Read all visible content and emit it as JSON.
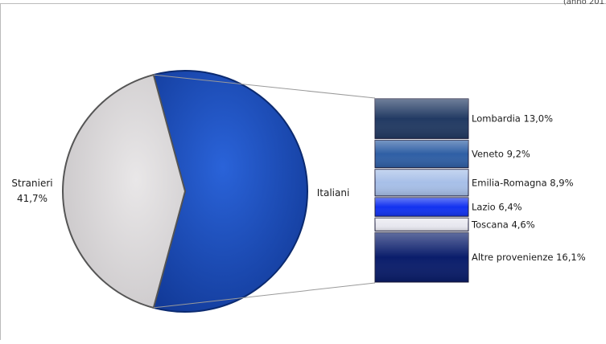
{
  "header": {
    "corner_text": "(anno 201"
  },
  "colors": {
    "italiani": "#1f4fba",
    "stranieri": "#d9d7d8",
    "lombardia": "#223a63",
    "veneto": "#2f5fa5",
    "emilia_romagna": "#a7bfe8",
    "lazio": "#1232f0",
    "toscana": "#e8e8f0",
    "altre": "#0a1d6b"
  },
  "chart_data": {
    "type": "pie",
    "pie": {
      "slices": [
        {
          "label": "Italiani",
          "value_text": "",
          "value": 58.3
        },
        {
          "label": "Stranieri",
          "value_text": "41,7%",
          "value": 41.7
        }
      ]
    },
    "bar": {
      "type": "bar",
      "stacked": true,
      "segments": [
        {
          "label": "Lombardia 13,0%",
          "value": 13.0
        },
        {
          "label": "Veneto 9,2%",
          "value": 9.2
        },
        {
          "label": "Emilia-Romagna 8,9%",
          "value": 8.9
        },
        {
          "label": "Lazio 6,4%",
          "value": 6.4
        },
        {
          "label": "Toscana 4,6%",
          "value": 4.6
        },
        {
          "label": "Altre provenienze  16,1%",
          "value": 16.1
        }
      ]
    }
  }
}
